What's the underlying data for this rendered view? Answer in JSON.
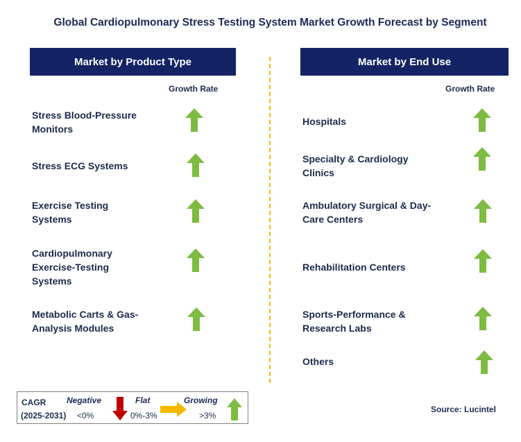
{
  "title": "Global Cardiopulmonary Stress Testing System Market Growth Forecast by Segment",
  "left_panel": {
    "header": "Market by Product Type",
    "growth_label": "Growth Rate",
    "items": [
      {
        "line1": "Stress Blood-Pressure",
        "line2": "Monitors",
        "line3": ""
      },
      {
        "line1": "Stress ECG Systems",
        "line2": "",
        "line3": ""
      },
      {
        "line1": "Exercise Testing",
        "line2": "Systems",
        "line3": ""
      },
      {
        "line1": "Cardiopulmonary",
        "line2": "Exercise-Testing",
        "line3": "Systems"
      },
      {
        "line1": "Metabolic Carts & Gas-",
        "line2": "Analysis Modules",
        "line3": ""
      }
    ]
  },
  "right_panel": {
    "header": "Market by End Use",
    "growth_label": "Growth Rate",
    "items": [
      {
        "line1": "Hospitals",
        "line2": ""
      },
      {
        "line1": "Specialty & Cardiology",
        "line2": "Clinics"
      },
      {
        "line1": "Ambulatory Surgical & Day-",
        "line2": "Care Centers"
      },
      {
        "line1": "Rehabilitation Centers",
        "line2": ""
      },
      {
        "line1": "Sports-Performance &",
        "line2": "Research Labs"
      },
      {
        "line1": "Others",
        "line2": ""
      }
    ]
  },
  "legend": {
    "cagr_label": "CAGR",
    "period": "(2025-2031)",
    "negative_label": "Negative",
    "negative_range": "<0%",
    "flat_label": "Flat",
    "flat_range": "0%-3%",
    "growing_label": "Growing",
    "growing_range": ">3%"
  },
  "source": "Source: Lucintel",
  "colors": {
    "header_bg": "#132363",
    "up_arrow": "#7dbb42",
    "down_arrow": "#c00000",
    "flat_arrow": "#f5b800",
    "divider": "#f5b800"
  }
}
